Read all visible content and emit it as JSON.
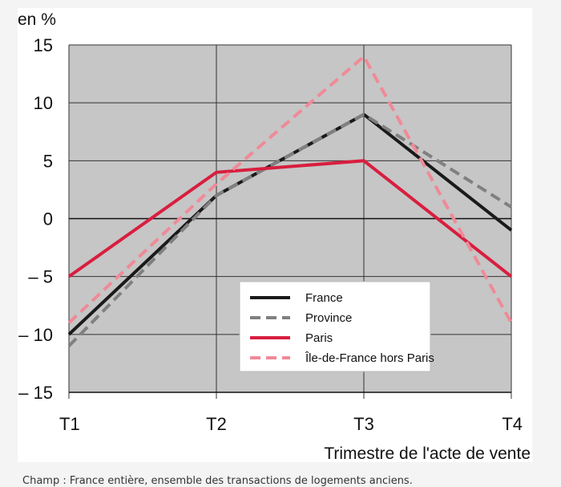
{
  "chart_data": {
    "type": "line",
    "ylabel": "en %",
    "xlabel": "Trimestre de l'acte de vente",
    "categories": [
      "T1",
      "T2",
      "T3",
      "T4"
    ],
    "ylim": [
      -15,
      15
    ],
    "yticks": [
      15,
      10,
      5,
      0,
      -5,
      -10,
      -15
    ],
    "ytick_labels": [
      "15",
      "10",
      "5",
      "0",
      "– 5",
      "– 10",
      "– 15"
    ],
    "grid": true,
    "legend_position": "bottom-right",
    "series": [
      {
        "name": "France",
        "values": [
          -10,
          2,
          9,
          -1
        ],
        "color": "#1a1a1a",
        "style": "solid"
      },
      {
        "name": "Province",
        "values": [
          -11,
          2,
          9,
          1
        ],
        "color": "#808080",
        "style": "dashed"
      },
      {
        "name": "Paris",
        "values": [
          -5,
          4,
          5,
          -5
        ],
        "color": "#d81e3f",
        "style": "solid"
      },
      {
        "name": "Île-de-France hors Paris",
        "values": [
          -9,
          3,
          14,
          -9
        ],
        "color": "#ef8a97",
        "style": "dashed"
      }
    ],
    "colors": {
      "plot_background": "#c6c6c6",
      "grid": "#333333"
    }
  },
  "caption": "Champ : France entière, ensemble des transactions de logements anciens."
}
